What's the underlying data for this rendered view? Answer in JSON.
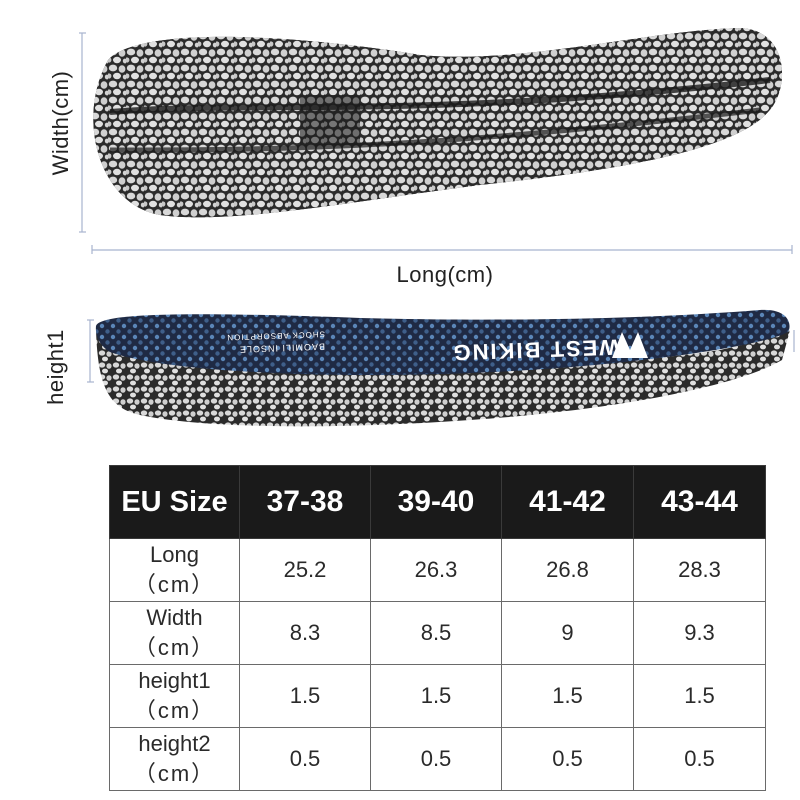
{
  "diagram": {
    "width_label": "Width(cm)",
    "long_label": "Long(cm)",
    "height_label": "height1",
    "brand_text": "WEST BIKING",
    "insole_print_1": "BAOMILI INSOLE",
    "insole_print_2": "SHOCK ABSORPTION",
    "colors": {
      "guide_line": "#a8b4cf",
      "sole_dark": "#2b2b2b",
      "pebble": "#d8d8d8",
      "top_fabric": "#1f2a44",
      "top_dot": "#5b86b8"
    }
  },
  "table": {
    "header": [
      "EU Size",
      "37-38",
      "39-40",
      "41-42",
      "43-44"
    ],
    "rows": [
      {
        "label": "Long",
        "unit": "（cm）",
        "values": [
          "25.2",
          "26.3",
          "26.8",
          "28.3"
        ]
      },
      {
        "label": "Width",
        "unit": "（cm）",
        "values": [
          "8.3",
          "8.5",
          "9",
          "9.3"
        ]
      },
      {
        "label": "height1",
        "unit": "（cm）",
        "values": [
          "1.5",
          "1.5",
          "1.5",
          "1.5"
        ]
      },
      {
        "label": "height2",
        "unit": "（cm）",
        "values": [
          "0.5",
          "0.5",
          "0.5",
          "0.5"
        ]
      }
    ],
    "colors": {
      "header_bg": "#1a1a1a",
      "header_text": "#ffffff",
      "border": "#6a6a6a"
    }
  }
}
